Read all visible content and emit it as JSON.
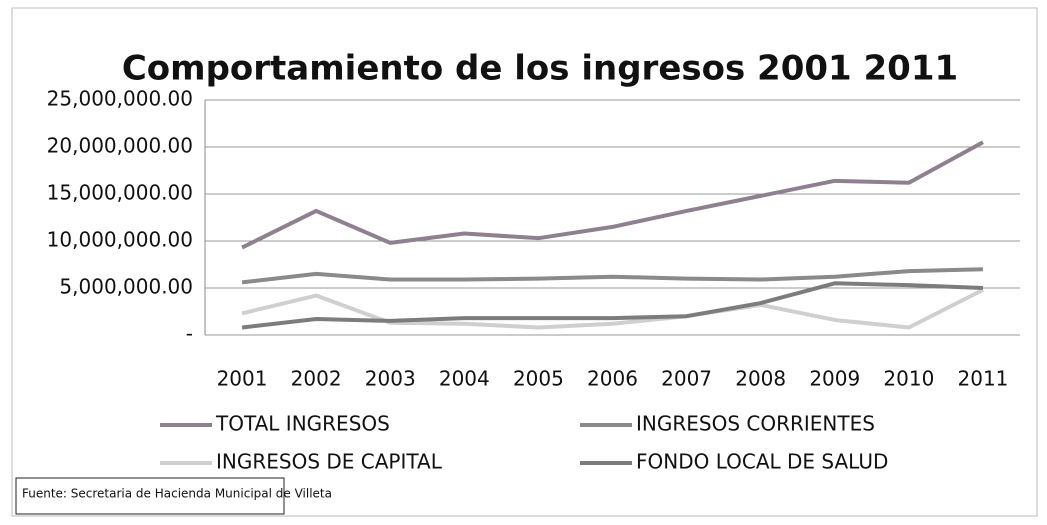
{
  "chart_data": {
    "type": "line",
    "title": "Comportamiento de los ingresos 2001 2011",
    "categories": [
      "2001",
      "2002",
      "2003",
      "2004",
      "2005",
      "2006",
      "2007",
      "2008",
      "2009",
      "2010",
      "2011"
    ],
    "series": [
      {
        "name": "TOTAL INGRESOS",
        "color": "#8f808f",
        "values": [
          9300000,
          13200000,
          9800000,
          10800000,
          10300000,
          11500000,
          13200000,
          14800000,
          16400000,
          16200000,
          20500000
        ]
      },
      {
        "name": "INGRESOS CORRIENTES",
        "color": "#8a8a8a",
        "values": [
          5600000,
          6500000,
          5900000,
          5900000,
          6000000,
          6200000,
          6000000,
          5900000,
          6200000,
          6800000,
          7000000
        ]
      },
      {
        "name": "INGRESOS DE CAPITAL",
        "color": "#cfcfcf",
        "values": [
          2300000,
          4200000,
          1300000,
          1200000,
          800000,
          1200000,
          2000000,
          3200000,
          1600000,
          800000,
          4800000
        ]
      },
      {
        "name": "FONDO LOCAL DE SALUD",
        "color": "#7c7c7c",
        "values": [
          800000,
          1700000,
          1500000,
          1800000,
          1800000,
          1800000,
          2000000,
          3400000,
          5500000,
          5300000,
          5000000
        ]
      }
    ],
    "ylim": [
      0,
      25000000
    ],
    "yticks": [
      {
        "value": 0,
        "label": "-"
      },
      {
        "value": 5000000,
        "label": "5,000,000.00"
      },
      {
        "value": 10000000,
        "label": "10,000,000.00"
      },
      {
        "value": 15000000,
        "label": "15,000,000.00"
      },
      {
        "value": 20000000,
        "label": "20,000,000.00"
      },
      {
        "value": 25000000,
        "label": "25,000,000.00"
      }
    ],
    "grid": true,
    "legend": "bottom",
    "source": "Fuente: Secretaria de Hacienda Municipal de Villeta"
  }
}
